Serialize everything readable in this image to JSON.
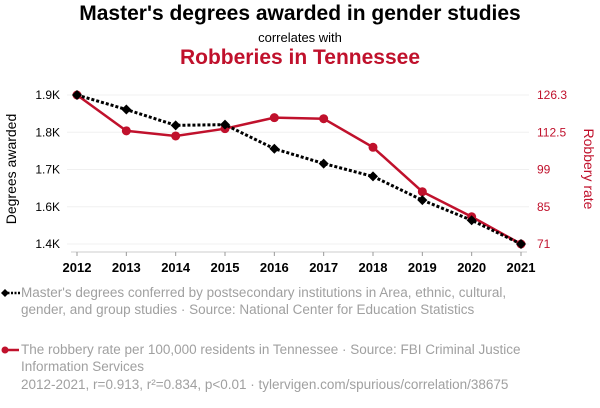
{
  "chart_data": {
    "type": "line",
    "title": "Master's degrees awarded in gender studies",
    "subtitle": "correlates with",
    "title2": "Robberies in Tennessee",
    "x": [
      2012,
      2013,
      2014,
      2015,
      2016,
      2017,
      2018,
      2019,
      2020,
      2021
    ],
    "xticks": [
      "2012",
      "2013",
      "2014",
      "2015",
      "2016",
      "2017",
      "2018",
      "2019",
      "2020",
      "2021"
    ],
    "series": [
      {
        "name": "Degrees awarded",
        "axis": "left",
        "color": "#000000",
        "values": [
          1898,
          1854,
          1806,
          1808,
          1735,
          1690,
          1651,
          1579,
          1518,
          1446
        ]
      },
      {
        "name": "Robbery rate",
        "axis": "right",
        "color": "#c0112c",
        "values": [
          126.3,
          113.0,
          111.1,
          113.8,
          117.9,
          117.5,
          106.9,
          90.4,
          81.1,
          71.0
        ]
      }
    ],
    "ylabel": "Degrees awarded",
    "ylim": [
      1446,
      1898
    ],
    "yticks": [
      "1.9K",
      "1.8K",
      "1.7K",
      "1.6K",
      "1.4K"
    ],
    "y2label": "Robbery rate",
    "y2lim": [
      71,
      126.3
    ],
    "y2ticks": [
      "126.3",
      "112.5",
      "99",
      "85",
      "71"
    ],
    "grid": true,
    "legend": [
      "Master's degrees conferred by postsecondary institutions in Area, ethnic, cultural, gender, and group studies · Source: National Center for Education Statistics",
      "The robbery rate per 100,000 residents in Tennessee · Source: FBI Criminal Justice Information Services"
    ],
    "footer": "2012-2021, r=0.913, r²=0.834, p<0.01 · tylervigen.com/spurious/correlation/38675"
  }
}
